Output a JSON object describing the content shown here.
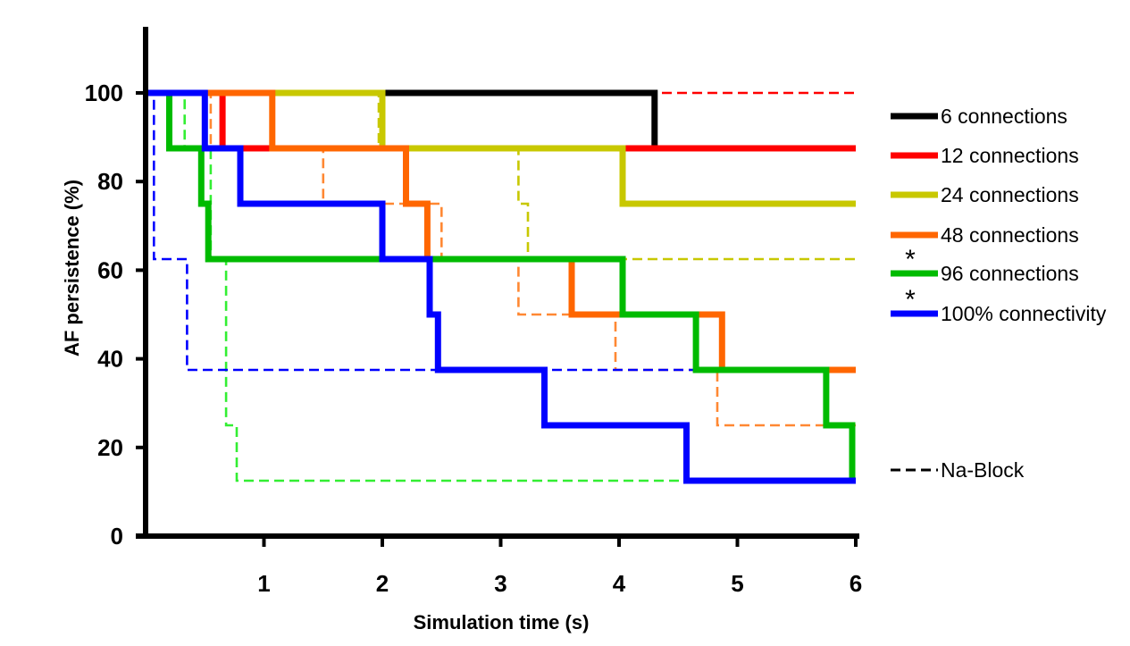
{
  "chart_data": {
    "type": "line",
    "step": true,
    "title": "",
    "xlabel": "Simulation time (s)",
    "ylabel": "AF persistence (%)",
    "xlim": [
      0,
      6
    ],
    "ylim": [
      0,
      100
    ],
    "xticks": [
      "1",
      "2",
      "3",
      "4",
      "5",
      "6"
    ],
    "yticks": [
      "0",
      "20",
      "40",
      "60",
      "80",
      "100"
    ],
    "grid": false,
    "legend_position": "right",
    "series": [
      {
        "name": "6 connections",
        "color": "#000000",
        "style": "solid",
        "points": [
          [
            0,
            100
          ],
          [
            4.3,
            100
          ],
          [
            4.3,
            87.5
          ],
          [
            6,
            87.5
          ]
        ]
      },
      {
        "name": "12 connections",
        "color": "#ff0000",
        "style": "solid",
        "points": [
          [
            0,
            100
          ],
          [
            0.65,
            100
          ],
          [
            0.65,
            87.5
          ],
          [
            6,
            87.5
          ]
        ]
      },
      {
        "name": "24 connections",
        "color": "#c8c800",
        "style": "solid",
        "points": [
          [
            0,
            100
          ],
          [
            2,
            100
          ],
          [
            2,
            87.5
          ],
          [
            4.03,
            87.5
          ],
          [
            4.03,
            75
          ],
          [
            6,
            75
          ]
        ]
      },
      {
        "name": "48 connections",
        "color": "#ff6600",
        "style": "solid",
        "points": [
          [
            0,
            100
          ],
          [
            1.07,
            100
          ],
          [
            1.07,
            87.5
          ],
          [
            2.2,
            87.5
          ],
          [
            2.2,
            75
          ],
          [
            2.38,
            75
          ],
          [
            2.38,
            62.5
          ],
          [
            3.6,
            62.5
          ],
          [
            3.6,
            50
          ],
          [
            4.87,
            50
          ],
          [
            4.87,
            37.5
          ],
          [
            6,
            37.5
          ]
        ]
      },
      {
        "name": "96 connections",
        "color": "#00bb00",
        "style": "solid",
        "points": [
          [
            0,
            100
          ],
          [
            0.2,
            100
          ],
          [
            0.2,
            87.5
          ],
          [
            0.47,
            87.5
          ],
          [
            0.47,
            75
          ],
          [
            0.53,
            75
          ],
          [
            0.53,
            62.5
          ],
          [
            4.03,
            62.5
          ],
          [
            4.03,
            50
          ],
          [
            4.65,
            50
          ],
          [
            4.65,
            37.5
          ],
          [
            5.75,
            37.5
          ],
          [
            5.75,
            25
          ],
          [
            5.97,
            25
          ],
          [
            5.97,
            12.5
          ],
          [
            6,
            12.5
          ]
        ]
      },
      {
        "name": "100% connectivity",
        "color": "#0000ff",
        "style": "solid",
        "points": [
          [
            0,
            100
          ],
          [
            0.5,
            100
          ],
          [
            0.5,
            87.5
          ],
          [
            0.8,
            87.5
          ],
          [
            0.8,
            75
          ],
          [
            2,
            75
          ],
          [
            2,
            62.5
          ],
          [
            2.4,
            62.5
          ],
          [
            2.4,
            50
          ],
          [
            2.47,
            50
          ],
          [
            2.47,
            37.5
          ],
          [
            3.37,
            37.5
          ],
          [
            3.37,
            25
          ],
          [
            4.57,
            25
          ],
          [
            4.57,
            12.5
          ],
          [
            6,
            12.5
          ]
        ]
      },
      {
        "color": "#ff0000",
        "style": "dashed",
        "points": [
          [
            0,
            100
          ],
          [
            6,
            100
          ]
        ]
      },
      {
        "color": "#c8c800",
        "style": "dashed",
        "points": [
          [
            0,
            100
          ],
          [
            1.97,
            100
          ],
          [
            1.97,
            87.5
          ],
          [
            3.15,
            87.5
          ],
          [
            3.15,
            75
          ],
          [
            3.23,
            75
          ],
          [
            3.23,
            62.5
          ],
          [
            6,
            62.5
          ]
        ]
      },
      {
        "color": "#ff8833",
        "style": "dashed",
        "points": [
          [
            0,
            100
          ],
          [
            0.55,
            100
          ],
          [
            0.55,
            87.5
          ],
          [
            1.5,
            87.5
          ],
          [
            1.5,
            75
          ],
          [
            2.5,
            75
          ],
          [
            2.5,
            62.5
          ],
          [
            3.15,
            62.5
          ],
          [
            3.15,
            50
          ],
          [
            3.97,
            50
          ],
          [
            3.97,
            37.5
          ],
          [
            4.83,
            37.5
          ],
          [
            4.83,
            25
          ],
          [
            6,
            25
          ]
        ]
      },
      {
        "color": "#33ee33",
        "style": "dashed",
        "points": [
          [
            0,
            100
          ],
          [
            0.33,
            100
          ],
          [
            0.33,
            87.5
          ],
          [
            0.55,
            87.5
          ],
          [
            0.55,
            62.5
          ],
          [
            0.68,
            62.5
          ],
          [
            0.68,
            25
          ],
          [
            0.77,
            25
          ],
          [
            0.77,
            12.5
          ],
          [
            6,
            12.5
          ]
        ]
      },
      {
        "color": "#0000ff",
        "style": "dashed",
        "points": [
          [
            0,
            100
          ],
          [
            0.07,
            100
          ],
          [
            0.07,
            62.5
          ],
          [
            0.35,
            62.5
          ],
          [
            0.35,
            37.5
          ],
          [
            6,
            37.5
          ]
        ]
      }
    ],
    "legend": {
      "entries": [
        {
          "label": "6 connections",
          "color": "#000000",
          "style": "solid"
        },
        {
          "label": "12 connections",
          "color": "#ff0000",
          "style": "solid"
        },
        {
          "label": "24 connections",
          "color": "#c8c800",
          "style": "solid"
        },
        {
          "label": "48 connections",
          "color": "#ff6600",
          "style": "solid"
        },
        {
          "label": "96 connections",
          "color": "#00bb00",
          "style": "solid"
        },
        {
          "label": "100% connectivity",
          "color": "#0000ff",
          "style": "solid"
        }
      ],
      "na_block": {
        "label": "Na-Block",
        "color": "#000000",
        "style": "dashed"
      }
    },
    "annotations": [
      "*",
      "*"
    ]
  }
}
